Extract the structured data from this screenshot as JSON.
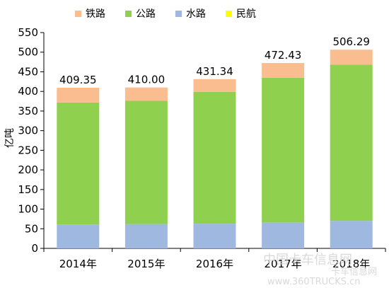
{
  "chart_data": {
    "type": "bar",
    "stacked": true,
    "categories": [
      "2014年",
      "2015年",
      "2016年",
      "2017年",
      "2018年"
    ],
    "series": [
      {
        "name": "铁路",
        "color": "#f9bd8f",
        "values": [
          37.5,
          34.0,
          32.3,
          37.4,
          38.3
        ]
      },
      {
        "name": "公路",
        "color": "#8fd14f",
        "values": [
          311.0,
          314.0,
          336.0,
          369.0,
          398.0
        ]
      },
      {
        "name": "水路",
        "color": "#9fb8df",
        "values": [
          60.8,
          62.0,
          63.0,
          66.0,
          70.0
        ]
      },
      {
        "name": "民航",
        "color": "#ffff00",
        "values": [
          0.05,
          0.0,
          0.04,
          0.03,
          0.0
        ]
      }
    ],
    "totals": [
      "409.35",
      "410.00",
      "431.34",
      "472.43",
      "506.29"
    ],
    "ylabel": "亿吨",
    "ylim": [
      0,
      550
    ],
    "yticks": [
      0,
      50,
      100,
      150,
      200,
      250,
      300,
      350,
      400,
      450,
      500,
      550
    ],
    "grid": false,
    "legend_position": "top"
  },
  "watermark": {
    "main": "中国卡车信息网",
    "sub": "卡车信息网",
    "url": "www.360TRUCKS.cn"
  }
}
